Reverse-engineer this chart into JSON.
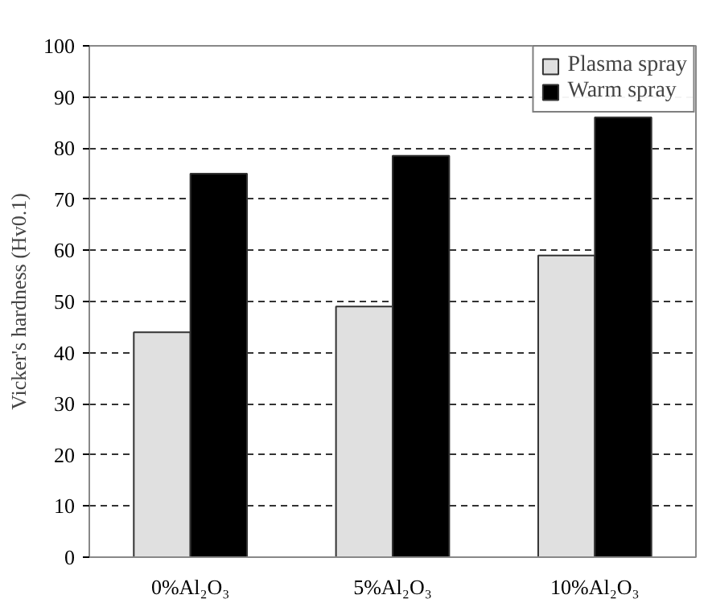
{
  "chart_data": {
    "type": "bar",
    "ylabel": "Vicker's hardness (Hv0.1)",
    "categories": [
      "0%Al₂O₃",
      "5%Al₂O₃",
      "10%Al₂O₃"
    ],
    "series": [
      {
        "name": "Plasma spray",
        "color": "#e0e0e0",
        "values": [
          44,
          49,
          59
        ]
      },
      {
        "name": "Warm spray",
        "color": "#000000",
        "values": [
          75,
          78.5,
          86
        ]
      }
    ],
    "ylim": [
      0,
      100
    ],
    "yticks": [
      0,
      10,
      20,
      30,
      40,
      50,
      60,
      70,
      80,
      90,
      100
    ],
    "grid": "y",
    "legend": "top right"
  }
}
